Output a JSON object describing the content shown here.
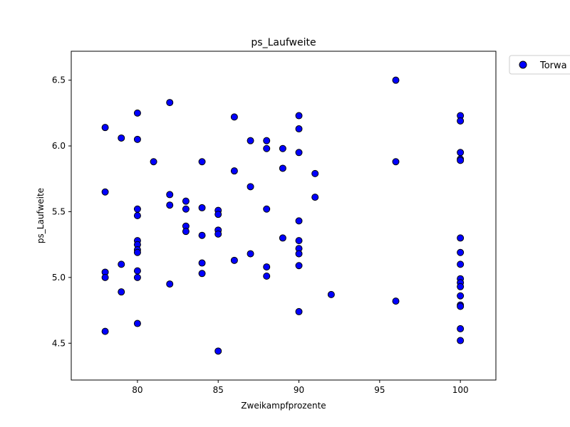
{
  "chart_data": {
    "type": "scatter",
    "title": "ps_Laufweite",
    "xlabel": "Zweikampfprozente",
    "ylabel": "ps_Laufweite",
    "xlim": [
      75.9,
      102.2
    ],
    "ylim": [
      4.22,
      6.72
    ],
    "xticks": [
      80,
      85,
      90,
      95,
      100
    ],
    "yticks": [
      4.5,
      5.0,
      5.5,
      6.0,
      6.5
    ],
    "xtick_labels": [
      "80",
      "85",
      "90",
      "95",
      "100"
    ],
    "ytick_labels": [
      "4.5",
      "5.0",
      "5.5",
      "6.0",
      "6.5"
    ],
    "grid": false,
    "legend_position": "outside-top-right",
    "series": [
      {
        "name": "Torwa",
        "color": "#0000ff",
        "edgecolor": "#000000",
        "points": [
          [
            78,
            6.14
          ],
          [
            78,
            5.65
          ],
          [
            78,
            5.04
          ],
          [
            78,
            5.0
          ],
          [
            78,
            4.59
          ],
          [
            79,
            6.06
          ],
          [
            79,
            5.1
          ],
          [
            79,
            4.89
          ],
          [
            80,
            6.25
          ],
          [
            80,
            6.05
          ],
          [
            80,
            5.52
          ],
          [
            80,
            5.47
          ],
          [
            80,
            5.28
          ],
          [
            80,
            5.25
          ],
          [
            80,
            5.21
          ],
          [
            80,
            5.19
          ],
          [
            80,
            5.05
          ],
          [
            80,
            5.0
          ],
          [
            80,
            4.65
          ],
          [
            81,
            5.88
          ],
          [
            82,
            6.33
          ],
          [
            82,
            5.63
          ],
          [
            82,
            5.55
          ],
          [
            82,
            4.95
          ],
          [
            83,
            5.58
          ],
          [
            83,
            5.52
          ],
          [
            83,
            5.39
          ],
          [
            83,
            5.35
          ],
          [
            84,
            5.88
          ],
          [
            84,
            5.53
          ],
          [
            84,
            5.32
          ],
          [
            84,
            5.11
          ],
          [
            84,
            5.03
          ],
          [
            85,
            5.51
          ],
          [
            85,
            5.48
          ],
          [
            85,
            5.36
          ],
          [
            85,
            5.33
          ],
          [
            85,
            4.44
          ],
          [
            86,
            6.22
          ],
          [
            86,
            5.81
          ],
          [
            86,
            5.13
          ],
          [
            87,
            6.04
          ],
          [
            87,
            5.69
          ],
          [
            87,
            5.18
          ],
          [
            88,
            6.04
          ],
          [
            88,
            5.98
          ],
          [
            88,
            5.52
          ],
          [
            88,
            5.08
          ],
          [
            88,
            5.01
          ],
          [
            89,
            5.98
          ],
          [
            89,
            5.83
          ],
          [
            89,
            5.3
          ],
          [
            90,
            6.23
          ],
          [
            90,
            6.13
          ],
          [
            90,
            5.95
          ],
          [
            90,
            5.43
          ],
          [
            90,
            5.28
          ],
          [
            90,
            5.22
          ],
          [
            90,
            5.18
          ],
          [
            90,
            5.09
          ],
          [
            90,
            4.74
          ],
          [
            91,
            5.79
          ],
          [
            91,
            5.61
          ],
          [
            92,
            4.87
          ],
          [
            96,
            6.5
          ],
          [
            96,
            5.88
          ],
          [
            96,
            4.82
          ],
          [
            100,
            6.23
          ],
          [
            100,
            6.19
          ],
          [
            100,
            5.95
          ],
          [
            100,
            5.9
          ],
          [
            100,
            5.89
          ],
          [
            100,
            5.3
          ],
          [
            100,
            5.19
          ],
          [
            100,
            5.1
          ],
          [
            100,
            4.99
          ],
          [
            100,
            4.96
          ],
          [
            100,
            4.93
          ],
          [
            100,
            4.86
          ],
          [
            100,
            4.79
          ],
          [
            100,
            4.78
          ],
          [
            100,
            4.61
          ],
          [
            100,
            4.52
          ]
        ]
      }
    ]
  }
}
